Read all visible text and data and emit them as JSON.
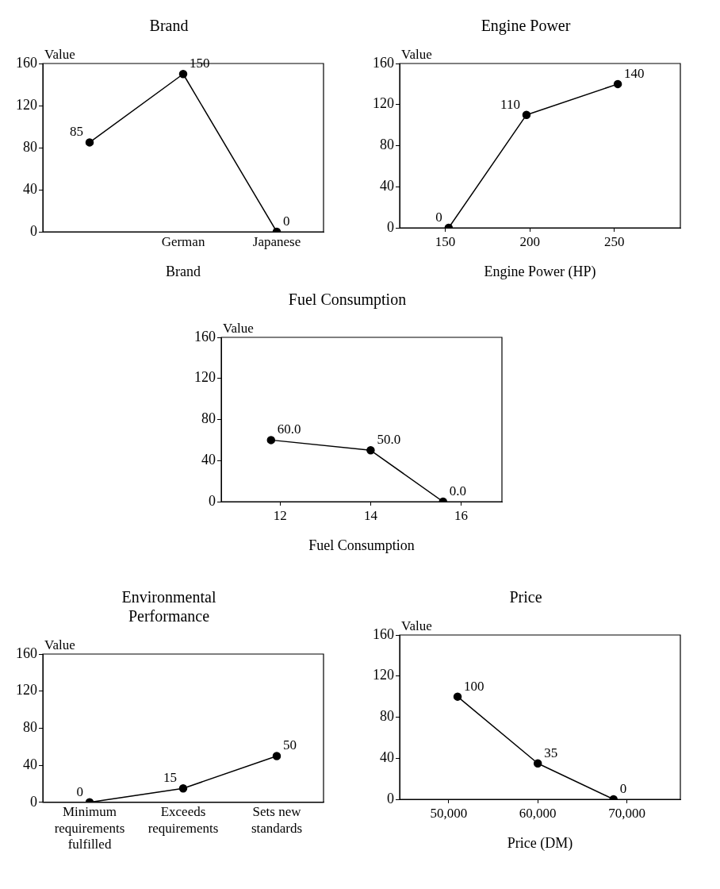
{
  "chart_data": [
    {
      "type": "line",
      "title": "Brand",
      "xlabel": "Brand",
      "ylabel": "Value",
      "categories": [
        null,
        "German",
        "Japanese"
      ],
      "values": [
        85,
        150,
        0
      ],
      "value_labels": [
        "85",
        "150",
        "0"
      ],
      "color": "#000000",
      "marker": "circle",
      "ylim": [
        0,
        160
      ],
      "yticks": [
        0,
        40,
        80,
        120,
        160
      ]
    },
    {
      "type": "line",
      "title": "Engine Power",
      "xlabel": "Engine Power (HP)",
      "ylabel": "Value",
      "x": [
        152,
        198,
        252
      ],
      "values": [
        0,
        110,
        140
      ],
      "value_labels": [
        "0",
        "110",
        "140"
      ],
      "color": "#000000",
      "marker": "circle",
      "xlim": [
        123,
        289
      ],
      "xticks": [
        150,
        200,
        250
      ],
      "ylim": [
        0,
        160
      ],
      "yticks": [
        0,
        40,
        80,
        120,
        160
      ]
    },
    {
      "type": "line",
      "title": "Fuel Consumption",
      "xlabel": "Fuel Consumption",
      "ylabel": "Value",
      "x": [
        11.8,
        14.0,
        15.6
      ],
      "values": [
        60,
        50,
        0
      ],
      "value_labels": [
        "60.0",
        "50.0",
        "0.0"
      ],
      "color": "#000000",
      "marker": "circle",
      "xlim": [
        10.7,
        16.9
      ],
      "xticks": [
        12,
        14,
        16
      ],
      "ylim": [
        0,
        160
      ],
      "yticks": [
        0,
        40,
        80,
        120,
        160
      ]
    },
    {
      "type": "line",
      "title": "Environmental Performance",
      "ylabel": "Value",
      "categories": [
        "Minimum requirements fulfilled",
        "Exceeds requirements",
        "Sets new standards"
      ],
      "values": [
        0,
        15,
        50
      ],
      "value_labels": [
        "0",
        "15",
        "50"
      ],
      "color": "#000000",
      "marker": "circle",
      "ylim": [
        0,
        160
      ],
      "yticks": [
        0,
        40,
        80,
        120,
        160
      ]
    },
    {
      "type": "line",
      "title": "Price",
      "xlabel": "Price (DM)",
      "ylabel": "Value",
      "x": [
        51000,
        60000,
        68500
      ],
      "values": [
        100,
        35,
        0
      ],
      "value_labels": [
        "100",
        "35",
        "0"
      ],
      "color": "#000000",
      "marker": "circle",
      "xlim": [
        44500,
        76000
      ],
      "xticks": [
        {
          "value": 50000,
          "label": "50,000"
        },
        {
          "value": 60000,
          "label": "60,000"
        },
        {
          "value": 70000,
          "label": "70,000"
        }
      ],
      "ylim": [
        0,
        160
      ],
      "yticks": [
        0,
        40,
        80,
        120,
        160
      ]
    }
  ]
}
